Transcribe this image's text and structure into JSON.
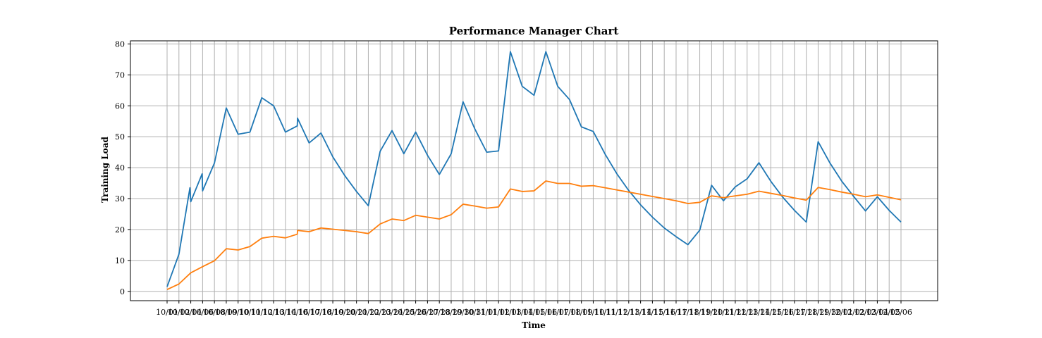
{
  "chart_data": {
    "type": "line",
    "title": "Performance Manager Chart",
    "xlabel": "Time",
    "ylabel": "Training Load",
    "ylim": [
      -3,
      81
    ],
    "yticks": [
      0,
      10,
      20,
      30,
      40,
      50,
      60,
      70,
      80
    ],
    "grid": true,
    "legend": "none",
    "xtick_labels": [
      "10/01",
      "10/02",
      "10/04",
      "10/06",
      "10/08",
      "10/09",
      "10/10",
      "10/11",
      "10/12",
      "10/13",
      "10/14",
      "10/16",
      "10/17",
      "10/18",
      "10/19",
      "10/20",
      "10/21",
      "10/22",
      "10/23",
      "10/24",
      "10/25",
      "10/26",
      "10/27",
      "10/28",
      "10/29",
      "10/30",
      "10/31",
      "11/01",
      "11/02",
      "11/03",
      "11/04",
      "11/05",
      "11/06",
      "11/07",
      "11/08",
      "11/09",
      "11/10",
      "11/11",
      "11/12",
      "11/13",
      "11/14",
      "11/15",
      "11/16",
      "11/17",
      "11/18",
      "11/19",
      "11/20",
      "11/21",
      "11/22",
      "11/23",
      "11/24",
      "11/25",
      "11/26",
      "11/27",
      "11/28",
      "11/29",
      "11/30",
      "12/01",
      "12/02",
      "12/03",
      "12/04",
      "12/05",
      "12/06"
    ],
    "series": [
      {
        "color": "#1f77b4",
        "points": [
          [
            0,
            1.5
          ],
          [
            1,
            12
          ],
          [
            1.93,
            33.5
          ],
          [
            2,
            29
          ],
          [
            2.96,
            38
          ],
          [
            3,
            32.5
          ],
          [
            4,
            41.5
          ],
          [
            5,
            59.3
          ],
          [
            6,
            50.8
          ],
          [
            7,
            51.5
          ],
          [
            8,
            62.6
          ],
          [
            9,
            60
          ],
          [
            10,
            51.5
          ],
          [
            11,
            53.5
          ],
          [
            11.02,
            56
          ],
          [
            12,
            48
          ],
          [
            13,
            51.2
          ],
          [
            14,
            43.5
          ],
          [
            15,
            37.5
          ],
          [
            16,
            32.3
          ],
          [
            17,
            27.7
          ],
          [
            18,
            45.3
          ],
          [
            19,
            52
          ],
          [
            20,
            44.5
          ],
          [
            21,
            51.5
          ],
          [
            22,
            44
          ],
          [
            23,
            37.8
          ],
          [
            24,
            44.5
          ],
          [
            25,
            61.3
          ],
          [
            26,
            52.5
          ],
          [
            27,
            45
          ],
          [
            28,
            45.4
          ],
          [
            29,
            77.5
          ],
          [
            30,
            66.3
          ],
          [
            31,
            63.4
          ],
          [
            32,
            77.5
          ],
          [
            33,
            66.3
          ],
          [
            34,
            62
          ],
          [
            35,
            53.2
          ],
          [
            36,
            51.7
          ],
          [
            37,
            44.4
          ],
          [
            38,
            38
          ],
          [
            39,
            32.6
          ],
          [
            40,
            28
          ],
          [
            41,
            24
          ],
          [
            42,
            20.5
          ],
          [
            43,
            17.7
          ],
          [
            44,
            15.1
          ],
          [
            45,
            19.8
          ],
          [
            46,
            34.3
          ],
          [
            47,
            29.3
          ],
          [
            48,
            33.8
          ],
          [
            49,
            36.4
          ],
          [
            50,
            41.6
          ],
          [
            51,
            35.6
          ],
          [
            52,
            30.5
          ],
          [
            53,
            26.2
          ],
          [
            54,
            22.4
          ],
          [
            55,
            48.4
          ],
          [
            56,
            41.5
          ],
          [
            57,
            35.6
          ],
          [
            58,
            30.7
          ],
          [
            59,
            26
          ],
          [
            60,
            30.6
          ],
          [
            61,
            26.2
          ],
          [
            62,
            22.4
          ]
        ]
      },
      {
        "color": "#ff7f0e",
        "points": [
          [
            0,
            0.6
          ],
          [
            1,
            2.4
          ],
          [
            2,
            6
          ],
          [
            3,
            8
          ],
          [
            4,
            9.9
          ],
          [
            5,
            13.8
          ],
          [
            6,
            13.4
          ],
          [
            7,
            14.5
          ],
          [
            8,
            17.2
          ],
          [
            9,
            17.8
          ],
          [
            10,
            17.3
          ],
          [
            11,
            18.5
          ],
          [
            11.02,
            19.7
          ],
          [
            12,
            19.3
          ],
          [
            13,
            20.5
          ],
          [
            14,
            20.1
          ],
          [
            15,
            19.7
          ],
          [
            16,
            19.3
          ],
          [
            17,
            18.7
          ],
          [
            18,
            21.8
          ],
          [
            19,
            23.4
          ],
          [
            20,
            22.9
          ],
          [
            21,
            24.6
          ],
          [
            22,
            24
          ],
          [
            23,
            23.4
          ],
          [
            24,
            24.8
          ],
          [
            25,
            28.2
          ],
          [
            26,
            27.6
          ],
          [
            27,
            26.9
          ],
          [
            28,
            27.3
          ],
          [
            29,
            33.1
          ],
          [
            30,
            32.3
          ],
          [
            31,
            32.5
          ],
          [
            32,
            35.7
          ],
          [
            33,
            34.9
          ],
          [
            34,
            34.9
          ],
          [
            35,
            34
          ],
          [
            36,
            34.2
          ],
          [
            37,
            33.5
          ],
          [
            38,
            32.8
          ],
          [
            39,
            32.1
          ],
          [
            40,
            31.4
          ],
          [
            41,
            30.7
          ],
          [
            42,
            30
          ],
          [
            43,
            29.3
          ],
          [
            44,
            28.4
          ],
          [
            45,
            28.8
          ],
          [
            46,
            30.9
          ],
          [
            47,
            30.3
          ],
          [
            48,
            30.9
          ],
          [
            49,
            31.4
          ],
          [
            50,
            32.4
          ],
          [
            51,
            31.7
          ],
          [
            52,
            31
          ],
          [
            53,
            30.2
          ],
          [
            54,
            29.5
          ],
          [
            55,
            33.6
          ],
          [
            56,
            32.9
          ],
          [
            57,
            32.1
          ],
          [
            58,
            31.4
          ],
          [
            59,
            30.6
          ],
          [
            60,
            31.2
          ],
          [
            61,
            30.4
          ],
          [
            62,
            29.6
          ]
        ]
      }
    ]
  }
}
